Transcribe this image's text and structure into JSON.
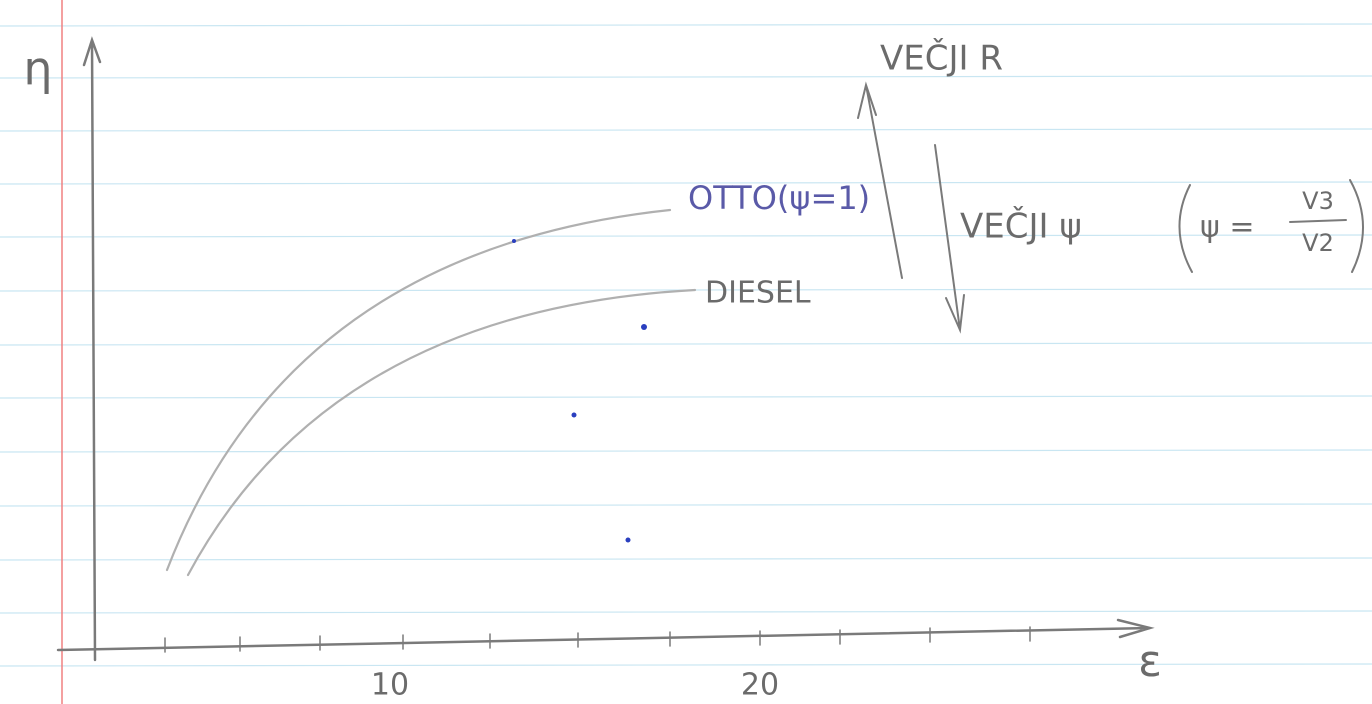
{
  "axes": {
    "y_label": "η",
    "x_label": "ε",
    "x_tick_labels": [
      "10",
      "20"
    ]
  },
  "curves": [
    {
      "label": "OTTO(ψ=1)"
    },
    {
      "label": "DIESEL"
    }
  ],
  "annotations": {
    "larger_r": "VEČJI R",
    "larger_psi": "VEČJI ψ",
    "psi_definition": {
      "lhs": "ψ =",
      "numerator": "V3",
      "denominator": "V2"
    }
  }
}
